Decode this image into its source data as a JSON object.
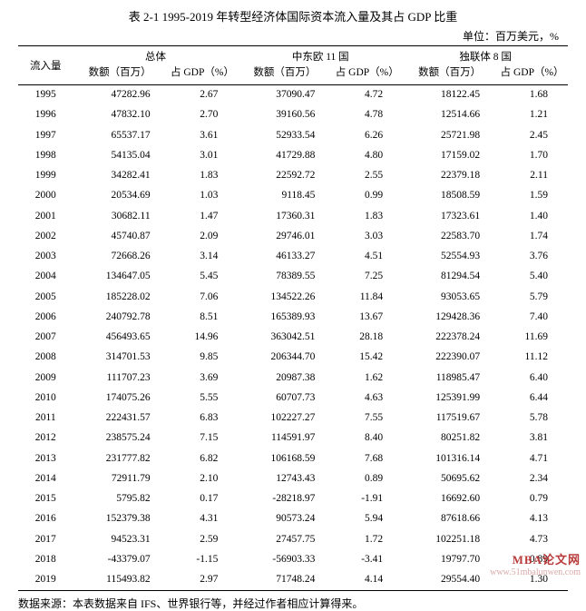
{
  "title": "表 2-1 1995-2019 年转型经济体国际资本流入量及其占 GDP 比重",
  "unit_label": "单位：百万美元，%",
  "row_label": "流入量",
  "groups": {
    "g1": "总体",
    "g2": "中东欧 11 国",
    "g3": "独联体 8 国"
  },
  "sub_headers": {
    "amount": "数额（百万）",
    "pct": "占 GDP（%）"
  },
  "columns_width": {
    "label": "10%",
    "amt": "17%",
    "pct": "13%"
  },
  "colors": {
    "text": "#000000",
    "background": "#ffffff",
    "watermark_main": "#b93a3a",
    "watermark_sub": "#d9a9a9"
  },
  "watermark": {
    "line1": "MBA论文网",
    "line2": "www.51mbalunwen.com"
  },
  "source_note": "数据来源：本表数据来自 IFS、世界银行等，并经过作者相应计算得来。",
  "rows": [
    {
      "year": "1995",
      "a1": "47282.96",
      "p1": "2.67",
      "a2": "37090.47",
      "p2": "4.72",
      "a3": "18122.45",
      "p3": "1.68"
    },
    {
      "year": "1996",
      "a1": "47832.10",
      "p1": "2.70",
      "a2": "39160.56",
      "p2": "4.78",
      "a3": "12514.66",
      "p3": "1.21"
    },
    {
      "year": "1997",
      "a1": "65537.17",
      "p1": "3.61",
      "a2": "52933.54",
      "p2": "6.26",
      "a3": "25721.98",
      "p3": "2.45"
    },
    {
      "year": "1998",
      "a1": "54135.04",
      "p1": "3.01",
      "a2": "41729.88",
      "p2": "4.80",
      "a3": "17159.02",
      "p3": "1.70"
    },
    {
      "year": "1999",
      "a1": "34282.41",
      "p1": "1.83",
      "a2": "22592.72",
      "p2": "2.55",
      "a3": "22379.18",
      "p3": "2.11"
    },
    {
      "year": "2000",
      "a1": "20534.69",
      "p1": "1.03",
      "a2": "9118.45",
      "p2": "0.99",
      "a3": "18508.59",
      "p3": "1.59"
    },
    {
      "year": "2001",
      "a1": "30682.11",
      "p1": "1.47",
      "a2": "17360.31",
      "p2": "1.83",
      "a3": "17323.61",
      "p3": "1.40"
    },
    {
      "year": "2002",
      "a1": "45740.87",
      "p1": "2.09",
      "a2": "29746.01",
      "p2": "3.03",
      "a3": "22583.70",
      "p3": "1.74"
    },
    {
      "year": "2003",
      "a1": "72668.26",
      "p1": "3.14",
      "a2": "46133.27",
      "p2": "4.51",
      "a3": "52554.93",
      "p3": "3.76"
    },
    {
      "year": "2004",
      "a1": "134647.05",
      "p1": "5.45",
      "a2": "78389.55",
      "p2": "7.25",
      "a3": "81294.54",
      "p3": "5.40"
    },
    {
      "year": "2005",
      "a1": "185228.02",
      "p1": "7.06",
      "a2": "134522.26",
      "p2": "11.84",
      "a3": "93053.65",
      "p3": "5.79"
    },
    {
      "year": "2006",
      "a1": "240792.78",
      "p1": "8.51",
      "a2": "165389.93",
      "p2": "13.67",
      "a3": "129428.36",
      "p3": "7.40"
    },
    {
      "year": "2007",
      "a1": "456493.65",
      "p1": "14.96",
      "a2": "363042.51",
      "p2": "28.18",
      "a3": "222378.24",
      "p3": "11.69"
    },
    {
      "year": "2008",
      "a1": "314701.53",
      "p1": "9.85",
      "a2": "206344.70",
      "p2": "15.42",
      "a3": "222390.07",
      "p3": "11.12"
    },
    {
      "year": "2009",
      "a1": "111707.23",
      "p1": "3.69",
      "a2": "20987.38",
      "p2": "1.62",
      "a3": "118985.47",
      "p3": "6.40"
    },
    {
      "year": "2010",
      "a1": "174075.26",
      "p1": "5.55",
      "a2": "60707.73",
      "p2": "4.63",
      "a3": "125391.99",
      "p3": "6.44"
    },
    {
      "year": "2011",
      "a1": "222431.57",
      "p1": "6.83",
      "a2": "102227.27",
      "p2": "7.55",
      "a3": "117519.67",
      "p3": "5.78"
    },
    {
      "year": "2012",
      "a1": "238575.24",
      "p1": "7.15",
      "a2": "114591.97",
      "p2": "8.40",
      "a3": "80251.82",
      "p3": "3.81"
    },
    {
      "year": "2013",
      "a1": "231777.82",
      "p1": "6.82",
      "a2": "106168.59",
      "p2": "7.68",
      "a3": "101316.14",
      "p3": "4.71"
    },
    {
      "year": "2014",
      "a1": "72911.79",
      "p1": "2.10",
      "a2": "12743.43",
      "p2": "0.89",
      "a3": "50695.62",
      "p3": "2.34"
    },
    {
      "year": "2015",
      "a1": "5795.82",
      "p1": "0.17",
      "a2": "-28218.97",
      "p2": "-1.91",
      "a3": "16692.60",
      "p3": "0.79"
    },
    {
      "year": "2016",
      "a1": "152379.38",
      "p1": "4.31",
      "a2": "90573.24",
      "p2": "5.94",
      "a3": "87618.66",
      "p3": "4.13"
    },
    {
      "year": "2017",
      "a1": "94523.31",
      "p1": "2.59",
      "a2": "27457.75",
      "p2": "1.72",
      "a3": "102251.18",
      "p3": "4.73"
    },
    {
      "year": "2018",
      "a1": "-43379.07",
      "p1": "-1.15",
      "a2": "-56903.33",
      "p2": "-3.41",
      "a3": "19797.70",
      "p3": "0.89"
    },
    {
      "year": "2019",
      "a1": "115493.82",
      "p1": "2.97",
      "a2": "71748.24",
      "p2": "4.14",
      "a3": "29554.40",
      "p3": "1.30"
    }
  ]
}
